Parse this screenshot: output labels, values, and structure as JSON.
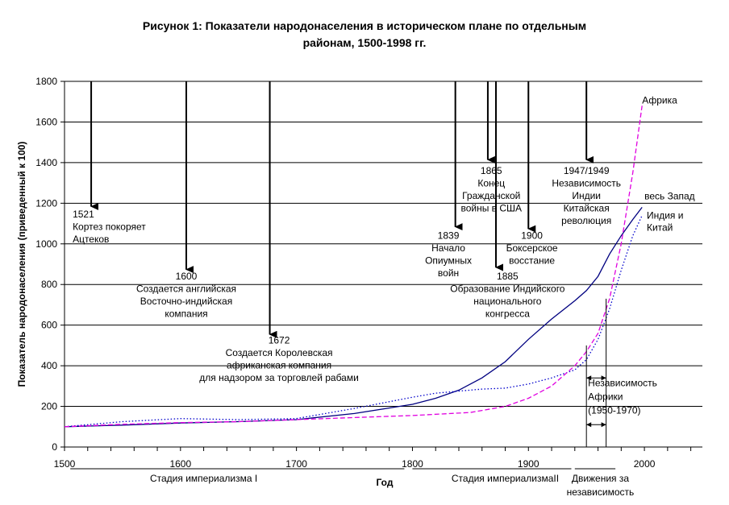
{
  "title_line1": "Рисунок 1: Показатели народонаселения в историческом плане по отдельным",
  "title_line2": "районам, 1500-1998 гг.",
  "chart_data": {
    "type": "line",
    "title": "Рисунок 1: Показатели народонаселения в историческом плане по отдельным районам, 1500-1998 гг.",
    "xlabel": "Год",
    "ylabel": "Показатель народонаселения (приведенный к 100)",
    "xlim": [
      1500,
      2050
    ],
    "ylim": [
      0,
      1800
    ],
    "x_ticks": [
      1500,
      1600,
      1700,
      1800,
      1900,
      2000
    ],
    "y_ticks": [
      0,
      200,
      400,
      600,
      800,
      1000,
      1200,
      1400,
      1600,
      1800
    ],
    "grid": "horizontal",
    "series": [
      {
        "name": "весь Запад",
        "color": "#000080",
        "style": "solid",
        "x": [
          1500,
          1550,
          1600,
          1650,
          1700,
          1750,
          1800,
          1820,
          1840,
          1860,
          1880,
          1900,
          1920,
          1940,
          1950,
          1960,
          1970,
          1980,
          1990,
          1998
        ],
        "y": [
          100,
          108,
          118,
          125,
          135,
          165,
          210,
          240,
          280,
          340,
          420,
          530,
          630,
          720,
          770,
          840,
          950,
          1040,
          1120,
          1180
        ]
      },
      {
        "name": "Индия и Китай",
        "color": "#0000cc",
        "style": "dotted",
        "x": [
          1500,
          1550,
          1600,
          1650,
          1700,
          1750,
          1800,
          1820,
          1840,
          1860,
          1880,
          1900,
          1920,
          1940,
          1950,
          1960,
          1970,
          1980,
          1990,
          1998
        ],
        "y": [
          100,
          125,
          140,
          135,
          140,
          190,
          245,
          265,
          275,
          285,
          290,
          310,
          340,
          380,
          430,
          530,
          680,
          870,
          1040,
          1140
        ]
      },
      {
        "name": "Африка",
        "color": "#e000e0",
        "style": "dashed",
        "x": [
          1500,
          1550,
          1600,
          1650,
          1700,
          1750,
          1800,
          1850,
          1880,
          1900,
          1920,
          1940,
          1950,
          1960,
          1970,
          1980,
          1990,
          1998
        ],
        "y": [
          100,
          112,
          120,
          125,
          135,
          145,
          155,
          170,
          200,
          240,
          300,
          400,
          470,
          560,
          730,
          1000,
          1350,
          1680
        ]
      }
    ],
    "series_labels": [
      {
        "text": "Африка",
        "x": 1998,
        "y": 1690
      },
      {
        "text": "весь Запад",
        "x": 2000,
        "y": 1220
      },
      {
        "text_lines": [
          "Индия и",
          "Китай"
        ],
        "x": 2002,
        "y": 1125
      }
    ],
    "annotations": [
      {
        "arrow_x": 1523,
        "arrow_from": 1800,
        "arrow_to": 1180,
        "align": "start",
        "text_x": 1507,
        "text_y": 1130,
        "lines": [
          "1521",
          "Кортез покоряет",
          "Ацтеков"
        ]
      },
      {
        "arrow_x": 1605,
        "arrow_from": 1800,
        "arrow_to": 870,
        "align": "middle",
        "text_x": 1605,
        "text_y": 825,
        "lines": [
          "1600",
          "Создается английская",
          "Восточно-индийская",
          "компания"
        ]
      },
      {
        "arrow_x": 1677,
        "arrow_from": 1800,
        "arrow_to": 550,
        "align": "middle",
        "text_x": 1685,
        "text_y": 510,
        "lines": [
          "1672",
          "Создается Королевская",
          "африканская компания",
          "для надзором за торговлей рабами"
        ]
      },
      {
        "arrow_x": 1837,
        "arrow_from": 1800,
        "arrow_to": 1080,
        "align": "middle",
        "text_x": 1831,
        "text_y": 1025,
        "lines": [
          "1839",
          "Начало",
          "Опиумных",
          "войн"
        ]
      },
      {
        "arrow_x": 1865,
        "arrow_from": 1800,
        "arrow_to": 1410,
        "align": "middle",
        "text_x": 1868,
        "text_y": 1345,
        "lines": [
          "1865",
          "Конец",
          "Гражданской",
          "войны в США"
        ]
      },
      {
        "arrow_x": 1872,
        "arrow_from": 1800,
        "arrow_to": 880,
        "align": "middle",
        "text_x": 1882,
        "text_y": 825,
        "lines": [
          "1885",
          "Образование Индийского",
          "национального",
          "конгресса"
        ]
      },
      {
        "arrow_x": 1900,
        "arrow_from": 1800,
        "arrow_to": 1070,
        "align": "middle",
        "text_x": 1903,
        "text_y": 1025,
        "lines": [
          "1900",
          "Боксерское",
          "восстание"
        ]
      },
      {
        "arrow_x": 1950,
        "arrow_from": 1800,
        "arrow_to": 1410,
        "align": "middle",
        "text_x": 1950,
        "text_y": 1345,
        "lines": [
          "1947/1949",
          "Независимость",
          "Индии",
          "Китайская",
          "революция"
        ]
      }
    ],
    "period_bracket": {
      "x_start": 1950,
      "x_end": 1967,
      "lines": [
        "Независимость",
        "Африки",
        "(1950-1970)"
      ]
    },
    "stages": [
      {
        "label": "Стадия империализма I",
        "x_start": 1505,
        "x_end": 1793,
        "label_x": 1620
      },
      {
        "label": "Стадия империализмаII",
        "x_start": 1800,
        "x_end": 1937,
        "label_x": 1880
      },
      {
        "label_lines": [
          "Движения за",
          "независимость"
        ],
        "x_start": 1940,
        "x_end": 1975,
        "label_x": 1962
      }
    ]
  }
}
